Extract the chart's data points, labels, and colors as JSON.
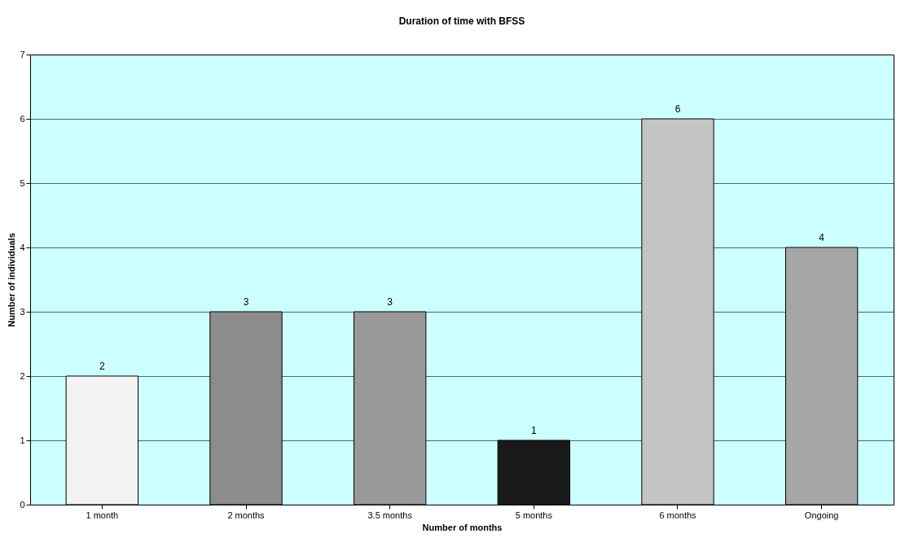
{
  "chart_data": {
    "type": "bar",
    "title": "Duration of time with BFSS",
    "xlabel": "Number of months",
    "ylabel": "Number of individuals",
    "categories": [
      "1 month",
      "2 months",
      "3.5 months",
      "5 months",
      "6 months",
      "Ongoing"
    ],
    "values": [
      2,
      3,
      3,
      1,
      6,
      4
    ],
    "colors": [
      "#f2f2f2",
      "#8c8c8c",
      "#9a9a9a",
      "#1a1a1a",
      "#c4c4c4",
      "#a6a6a6"
    ],
    "ylim": [
      0,
      7
    ],
    "yticks": [
      0,
      1,
      2,
      3,
      4,
      5,
      6,
      7
    ],
    "grid": "y",
    "data_labels": true,
    "legend": false
  }
}
